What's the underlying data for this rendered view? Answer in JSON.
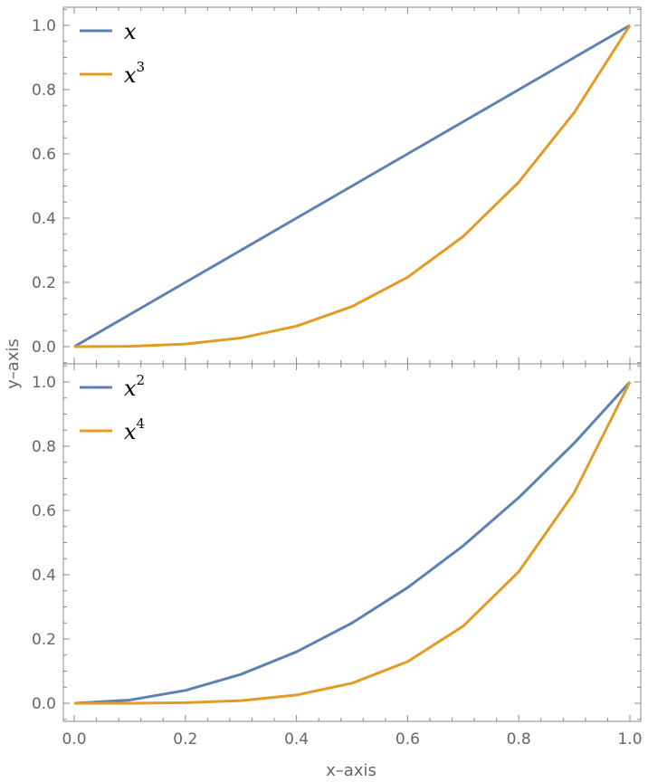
{
  "chart_data": [
    {
      "type": "line",
      "panel": "top",
      "xlim": [
        0,
        1
      ],
      "ylim": [
        0,
        1
      ],
      "x_ticks": [
        "0.0",
        "0.2",
        "0.4",
        "0.6",
        "0.8",
        "1.0"
      ],
      "y_ticks": [
        "0.0",
        "0.2",
        "0.4",
        "0.6",
        "0.8",
        "1.0"
      ],
      "legend_position": "top-left",
      "x_samples": [
        0,
        0.1,
        0.2,
        0.3,
        0.4,
        0.5,
        0.6,
        0.7,
        0.8,
        0.9,
        1.0
      ],
      "series": [
        {
          "name": "x",
          "sup": "",
          "color": "#5e81b5",
          "values": [
            0,
            0.1,
            0.2,
            0.3,
            0.4,
            0.5,
            0.6,
            0.7,
            0.8,
            0.9,
            1.0
          ]
        },
        {
          "name": "x",
          "sup": "3",
          "color": "#e19c24",
          "values": [
            0,
            0.001,
            0.008,
            0.027,
            0.064,
            0.125,
            0.216,
            0.343,
            0.512,
            0.729,
            1.0
          ]
        }
      ]
    },
    {
      "type": "line",
      "panel": "bottom",
      "xlim": [
        0,
        1
      ],
      "ylim": [
        0,
        1
      ],
      "x_ticks": [
        "0.0",
        "0.2",
        "0.4",
        "0.6",
        "0.8",
        "1.0"
      ],
      "y_ticks": [
        "0.0",
        "0.2",
        "0.4",
        "0.6",
        "0.8",
        "1.0"
      ],
      "legend_position": "top-left",
      "x_samples": [
        0,
        0.1,
        0.2,
        0.3,
        0.4,
        0.5,
        0.6,
        0.7,
        0.8,
        0.9,
        1.0
      ],
      "series": [
        {
          "name": "x",
          "sup": "2",
          "color": "#5e81b5",
          "values": [
            0,
            0.01,
            0.04,
            0.09,
            0.16,
            0.25,
            0.36,
            0.49,
            0.64,
            0.81,
            1.0
          ]
        },
        {
          "name": "x",
          "sup": "4",
          "color": "#e19c24",
          "values": [
            0,
            0.0001,
            0.0016,
            0.0081,
            0.0256,
            0.0625,
            0.1296,
            0.2401,
            0.4096,
            0.6561,
            1.0
          ]
        }
      ]
    }
  ],
  "xlabel": "x–axis",
  "ylabel": "y–axis"
}
